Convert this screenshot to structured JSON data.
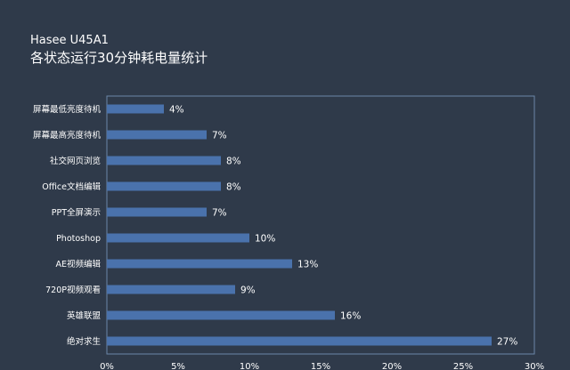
{
  "header": {
    "subtitle": "Hasee U45A1",
    "title": "各状态运行30分钟耗电量统计"
  },
  "colors": {
    "background": "#2f3a4a",
    "bar": "#4a72ac",
    "axis": "#6b87a8",
    "text": "#ffffff"
  },
  "chart_data": {
    "type": "bar",
    "orientation": "horizontal",
    "title": "各状态运行30分钟耗电量统计",
    "subtitle": "Hasee U45A1",
    "categories": [
      "屏幕最低亮度待机",
      "屏幕最高亮度待机",
      "社交网页浏览",
      "Office文档编辑",
      "PPT全屏演示",
      "Photoshop",
      "AE视频编辑",
      "720P视频观看",
      "英雄联盟",
      "绝对求生"
    ],
    "values": [
      4,
      7,
      8,
      8,
      7,
      10,
      13,
      9,
      16,
      27
    ],
    "value_labels": [
      "4%",
      "7%",
      "8%",
      "8%",
      "7%",
      "10%",
      "13%",
      "9%",
      "16%",
      "27%"
    ],
    "xlim": [
      0,
      30
    ],
    "xticks": [
      "0%",
      "5%",
      "10%",
      "15%",
      "20%",
      "25%",
      "30%"
    ],
    "xlabel": "",
    "ylabel": "",
    "grid": false
  }
}
